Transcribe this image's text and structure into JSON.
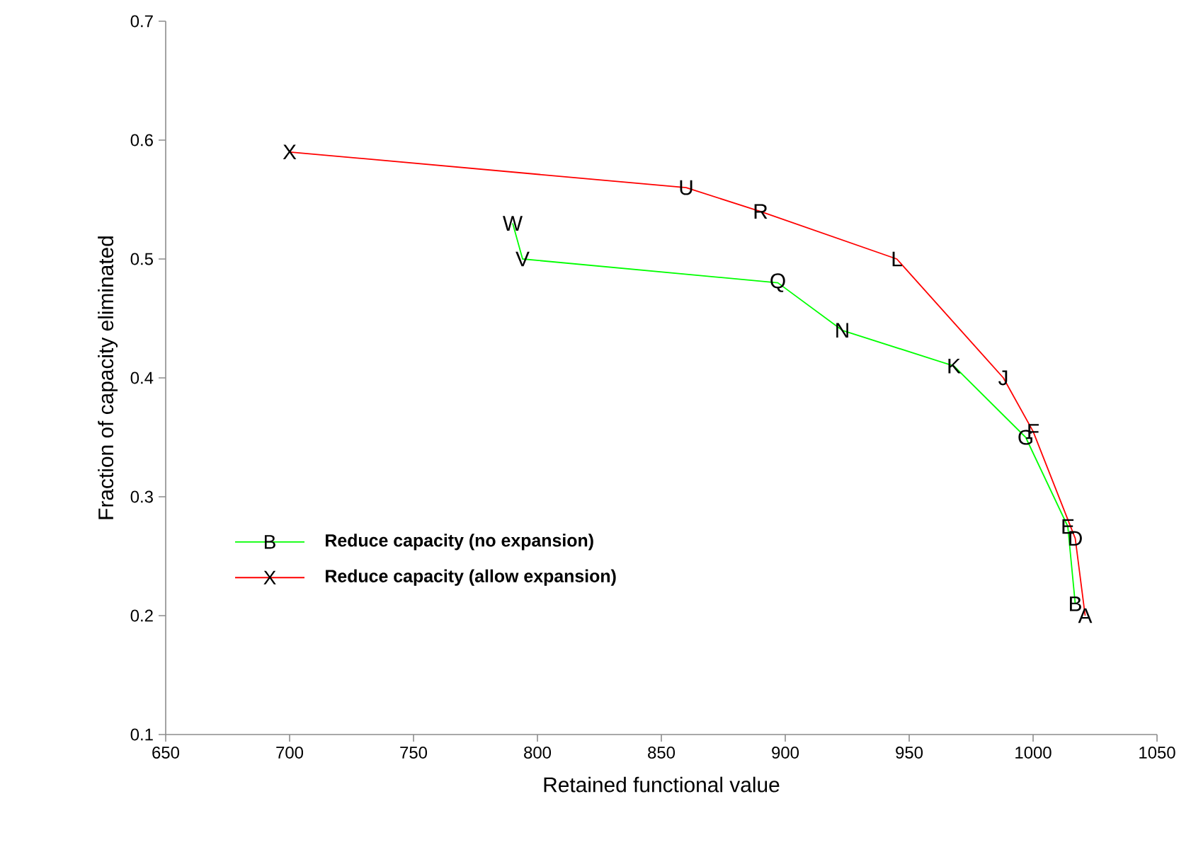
{
  "chart_data": {
    "type": "line",
    "xlabel": "Retained functional value",
    "ylabel": "Fraction of capacity eliminated",
    "xlim": [
      650,
      1050
    ],
    "xticks": [
      650,
      700,
      750,
      800,
      850,
      900,
      950,
      1000,
      1050
    ],
    "ylim": [
      0.1,
      0.7
    ],
    "yticks": [
      0.1,
      0.2,
      0.3,
      0.4,
      0.5,
      0.6,
      0.7
    ],
    "grid": false,
    "legend": "bottom left",
    "marker": "none",
    "line_style": "solid",
    "series": [
      {
        "name": "Reduce capacity (no expansion)",
        "color": "#00ff00",
        "x": [
          1017,
          1014,
          997,
          968,
          923,
          897,
          794,
          790
        ],
        "values": [
          0.21,
          0.275,
          0.35,
          0.41,
          0.44,
          0.48,
          0.5,
          0.53
        ]
      },
      {
        "name": "Reduce capacity (allow expansion)",
        "color": "#ff0000",
        "x": [
          1021,
          1017,
          1000,
          988,
          945,
          890,
          860,
          700
        ],
        "values": [
          0.2,
          0.265,
          0.355,
          0.4,
          0.5,
          0.54,
          0.56,
          0.59
        ]
      }
    ],
    "annotations": [
      "B",
      "X",
      {
        "text": "B",
        "x": 1017,
        "y": 0.21
      },
      {
        "text": "E",
        "x": 1014,
        "y": 0.275
      },
      {
        "text": "G",
        "x": 997,
        "y": 0.35
      },
      {
        "text": "K",
        "x": 968,
        "y": 0.41
      },
      {
        "text": "N",
        "x": 923,
        "y": 0.44
      },
      {
        "text": "Q",
        "x": 897,
        "y": 0.48
      },
      {
        "text": "V",
        "x": 794,
        "y": 0.5
      },
      {
        "text": "W",
        "x": 790,
        "y": 0.53
      },
      {
        "text": "A",
        "x": 1021,
        "y": 0.2
      },
      {
        "text": "D",
        "x": 1017,
        "y": 0.265
      },
      {
        "text": "F",
        "x": 1000,
        "y": 0.355
      },
      {
        "text": "J",
        "x": 988,
        "y": 0.4
      },
      {
        "text": "L",
        "x": 945,
        "y": 0.5
      },
      {
        "text": "R",
        "x": 890,
        "y": 0.54
      },
      {
        "text": "U",
        "x": 860,
        "y": 0.56
      },
      {
        "text": "X",
        "x": 700,
        "y": 0.59
      }
    ]
  }
}
